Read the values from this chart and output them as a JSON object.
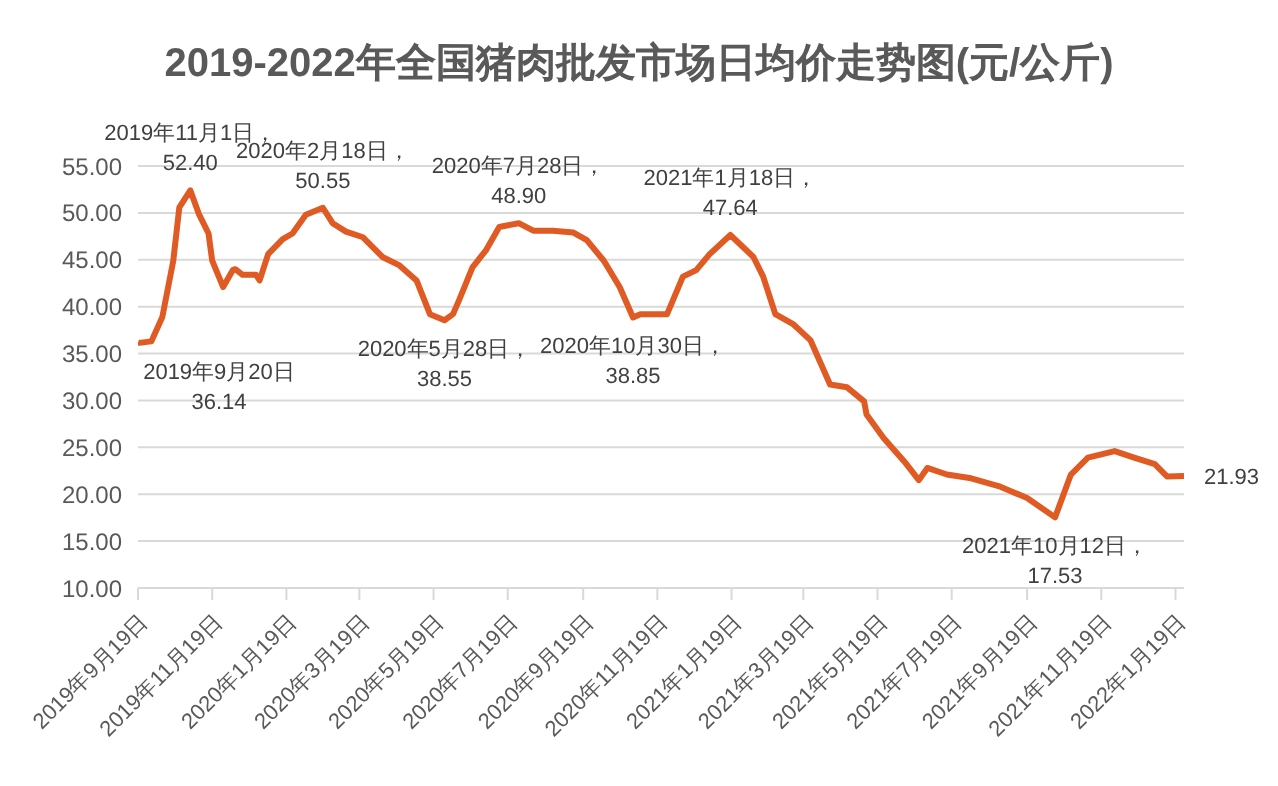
{
  "chart_data": {
    "type": "line",
    "title": "2019-2022年全国猪肉批发市场日均价走势图(元/公斤)",
    "x": [
      "2019-09-19",
      "2019-09-20",
      "2019-09-30",
      "2019-10-09",
      "2019-10-18",
      "2019-10-23",
      "2019-11-01",
      "2019-11-08",
      "2019-11-16",
      "2019-11-19",
      "2019-11-28",
      "2019-12-06",
      "2019-12-08",
      "2019-12-14",
      "2019-12-25",
      "2019-12-28",
      "2020-01-04",
      "2020-01-16",
      "2020-01-24",
      "2020-02-04",
      "2020-02-18",
      "2020-02-26",
      "2020-03-08",
      "2020-03-22",
      "2020-04-07",
      "2020-04-21",
      "2020-05-05",
      "2020-05-16",
      "2020-05-28",
      "2020-06-04",
      "2020-06-09",
      "2020-06-20",
      "2020-07-01",
      "2020-07-12",
      "2020-07-28",
      "2020-08-09",
      "2020-08-25",
      "2020-09-11",
      "2020-09-22",
      "2020-10-06",
      "2020-10-19",
      "2020-10-30",
      "2020-11-05",
      "2020-11-27",
      "2020-12-10",
      "2020-12-21",
      "2021-01-01",
      "2021-01-18",
      "2021-02-06",
      "2021-02-14",
      "2021-02-24",
      "2021-03-11",
      "2021-03-25",
      "2021-04-10",
      "2021-04-24",
      "2021-05-08",
      "2021-05-10",
      "2021-05-24",
      "2021-06-10",
      "2021-06-22",
      "2021-06-29",
      "2021-07-15",
      "2021-08-04",
      "2021-08-28",
      "2021-09-19",
      "2021-10-12",
      "2021-10-25",
      "2021-11-08",
      "2021-11-30",
      "2021-12-16",
      "2022-01-02",
      "2022-01-12",
      "2022-01-26"
    ],
    "series": [
      {
        "color": "#e05a24",
        "values": [
          36.2,
          36.14,
          36.3,
          38.9,
          44.9,
          50.6,
          52.4,
          49.9,
          47.8,
          44.9,
          42.1,
          43.9,
          44.0,
          43.4,
          43.4,
          42.8,
          45.6,
          47.2,
          47.8,
          49.8,
          50.55,
          48.9,
          48.0,
          47.4,
          45.3,
          44.4,
          42.8,
          39.2,
          38.55,
          39.2,
          40.7,
          44.2,
          46.0,
          48.5,
          48.9,
          48.1,
          48.1,
          47.9,
          47.1,
          44.9,
          42.1,
          38.85,
          39.2,
          39.2,
          43.2,
          43.9,
          45.6,
          47.64,
          45.3,
          43.2,
          39.2,
          38.1,
          36.4,
          31.7,
          31.4,
          29.9,
          28.5,
          26.0,
          23.5,
          21.5,
          22.8,
          22.1,
          21.7,
          20.8,
          19.6,
          17.53,
          22.1,
          23.9,
          24.6,
          23.9,
          23.2,
          21.9,
          21.93
        ]
      }
    ],
    "xlim": [
      "2019-09-19",
      "2022-01-26"
    ],
    "xticks": [
      {
        "value": "2019-09-19",
        "label": "2019年9月19日"
      },
      {
        "value": "2019-11-19",
        "label": "2019年11月19日"
      },
      {
        "value": "2020-01-19",
        "label": "2020年1月19日"
      },
      {
        "value": "2020-03-19",
        "label": "2020年3月19日"
      },
      {
        "value": "2020-05-19",
        "label": "2020年5月19日"
      },
      {
        "value": "2020-07-19",
        "label": "2020年7月19日"
      },
      {
        "value": "2020-09-19",
        "label": "2020年9月19日"
      },
      {
        "value": "2020-11-19",
        "label": "2020年11月19日"
      },
      {
        "value": "2021-01-19",
        "label": "2021年1月19日"
      },
      {
        "value": "2021-03-19",
        "label": "2021年3月19日"
      },
      {
        "value": "2021-05-19",
        "label": "2021年5月19日"
      },
      {
        "value": "2021-07-19",
        "label": "2021年7月19日"
      },
      {
        "value": "2021-09-19",
        "label": "2021年9月19日"
      },
      {
        "value": "2021-11-19",
        "label": "2021年11月19日"
      },
      {
        "value": "2022-01-19",
        "label": "2022年1月19日"
      }
    ],
    "ylim": [
      10,
      55
    ],
    "yticks": [
      {
        "value": 10,
        "label": "10.00"
      },
      {
        "value": 15,
        "label": "15.00"
      },
      {
        "value": 20,
        "label": "20.00"
      },
      {
        "value": 25,
        "label": "25.00"
      },
      {
        "value": 30,
        "label": "30.00"
      },
      {
        "value": 35,
        "label": "35.00"
      },
      {
        "value": 40,
        "label": "40.00"
      },
      {
        "value": 45,
        "label": "45.00"
      },
      {
        "value": 50,
        "label": "50.00"
      },
      {
        "value": 55,
        "label": "55.00"
      }
    ],
    "grid": "y",
    "legend": false,
    "marker": "none",
    "line_style": "solid",
    "annotations": [
      {
        "text": "2019年9月20日\n36.14",
        "x": "2019-09-20",
        "y": 36.14
      },
      {
        "text": "2019年11月1日，\n52.40",
        "x": "2019-11-01",
        "y": 52.4
      },
      {
        "text": "2020年2月18日，\n50.55",
        "x": "2020-02-18",
        "y": 50.55
      },
      {
        "text": "2020年5月28日，\n38.55",
        "x": "2020-05-28",
        "y": 38.55
      },
      {
        "text": "2020年7月28日，\n48.90",
        "x": "2020-07-28",
        "y": 48.9
      },
      {
        "text": "2020年10月30日，\n38.85",
        "x": "2020-10-30",
        "y": 38.85
      },
      {
        "text": "2021年1月18日，\n47.64",
        "x": "2021-01-18",
        "y": 47.64
      },
      {
        "text": "2021年10月12日，\n17.53",
        "x": "2021-10-12",
        "y": 17.53
      },
      {
        "text": "21.93",
        "x": "2022-01-26",
        "y": 21.93
      }
    ]
  }
}
